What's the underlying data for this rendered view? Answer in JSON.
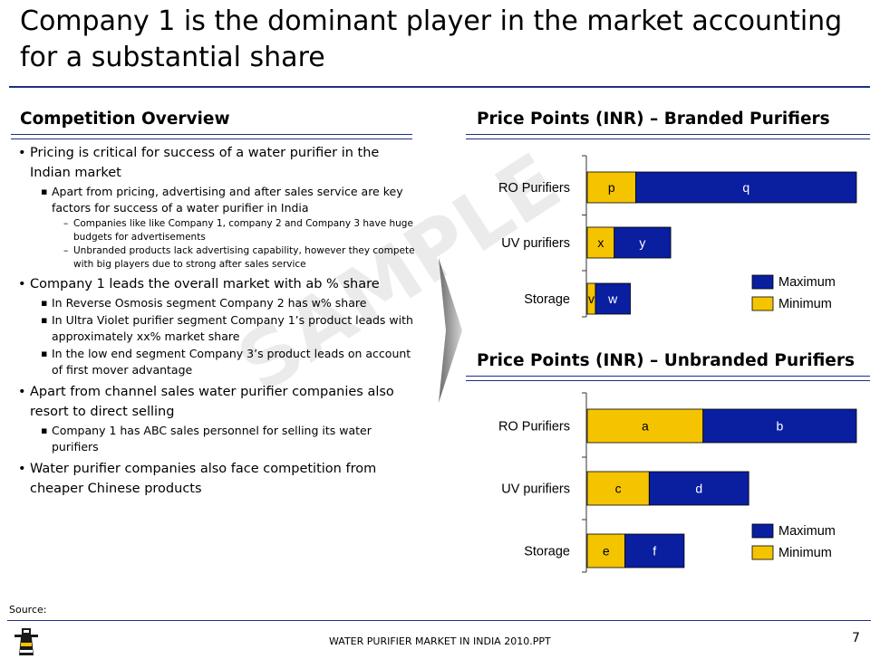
{
  "slide": {
    "title": "Company 1 is the dominant player in the market accounting for a substantial share",
    "source_label": "Source:",
    "footer": "WATER PURIFIER MARKET IN INDIA 2010.PPT",
    "page_number": "7",
    "watermark": "SAMPLE",
    "rule_color": "#1f2f86"
  },
  "left": {
    "heading": "Competition Overview",
    "bullets": [
      {
        "level": 1,
        "text": "Pricing is critical for success of a water purifier in the Indian market"
      },
      {
        "level": 2,
        "text": "Apart from pricing, advertising and after sales service are key factors for success of a water purifier in India"
      },
      {
        "level": 3,
        "text": "Companies like like Company 1, company 2 and Company 3 have huge budgets for advertisements"
      },
      {
        "level": 3,
        "text": "Unbranded products lack advertising capability, however they compete with big players due to strong after sales service"
      },
      {
        "level": 1,
        "text": "Company 1 leads the overall market with ab % share"
      },
      {
        "level": 2,
        "text": "In Reverse Osmosis segment Company 2 has w% share"
      },
      {
        "level": 2,
        "text": "In Ultra Violet purifier segment Company 1’s product leads with approximately xx% market share"
      },
      {
        "level": 2,
        "text": "In the low end segment Company 3’s product leads on account of first mover advantage"
      },
      {
        "level": 1,
        "text": "Apart from channel sales water purifier companies also resort to direct selling"
      },
      {
        "level": 2,
        "text": "Company 1 has ABC sales personnel for selling its water purifiers"
      },
      {
        "level": 1,
        "text": " Water purifier companies also face competition from cheaper Chinese products"
      }
    ]
  },
  "right": {
    "branded_heading": "Price Points (INR) – Branded Purifiers",
    "unbranded_heading": "Price Points  (INR) – Unbranded Purifiers"
  },
  "chart_data": [
    {
      "type": "bar",
      "orientation": "horizontal",
      "stacked": true,
      "title": "Price Points (INR) – Branded Purifiers",
      "categories": [
        "RO Purifiers",
        "UV purifiers",
        "Storage"
      ],
      "segment_labels": {
        "Minimum": [
          "p",
          "x",
          "v"
        ],
        "Maximum": [
          "q",
          "y",
          "w"
        ]
      },
      "series": [
        {
          "name": "Minimum",
          "color": "#f5c400",
          "values": [
            18,
            10,
            3
          ]
        },
        {
          "name": "Maximum",
          "color": "#0a1ea0",
          "values": [
            82,
            21,
            13
          ]
        }
      ],
      "legend": [
        "Maximum",
        "Minimum"
      ],
      "legend_position": "bottom-right"
    },
    {
      "type": "bar",
      "orientation": "horizontal",
      "stacked": true,
      "title": "Price Points  (INR) – Unbranded Purifiers",
      "categories": [
        "RO Purifiers",
        "UV purifiers",
        "Storage"
      ],
      "segment_labels": {
        "Minimum": [
          "a",
          "c",
          "e"
        ],
        "Maximum": [
          "b",
          "d",
          "f"
        ]
      },
      "series": [
        {
          "name": "Minimum",
          "color": "#f5c400",
          "values": [
            43,
            23,
            14
          ]
        },
        {
          "name": "Maximum",
          "color": "#0a1ea0",
          "values": [
            57,
            37,
            22
          ]
        }
      ],
      "legend": [
        "Maximum",
        "Minimum"
      ],
      "legend_position": "bottom-right"
    }
  ]
}
